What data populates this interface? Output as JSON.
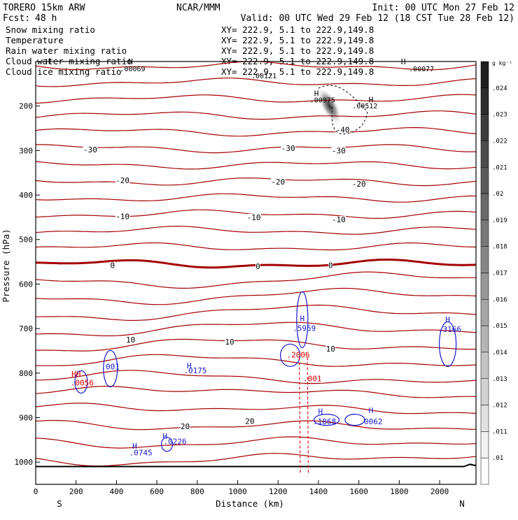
{
  "header": {
    "model": "TORERO  15km ARW",
    "org": "NCAR/MMM",
    "init": "Init: 00 UTC Mon 27 Feb 12",
    "fcst_label": "Fcst:",
    "fcst_value": "48 h",
    "valid": "Valid: 00 UTC Wed 29 Feb 12 (18 CST Tue 28 Feb 12)"
  },
  "legend": [
    {
      "name": "Snow mixing ratio",
      "xy": "XY= 222.9,  5.1 to 222.9,149.8",
      "color": "#000000"
    },
    {
      "name": "Temperature",
      "xy": "XY= 222.9,  5.1 to 222.9,149.8",
      "color": "#a50000"
    },
    {
      "name": "Rain water mixing ratio",
      "xy": "XY= 222.9,  5.1 to 222.9,149.8",
      "color": "#e00000"
    },
    {
      "name": "Cloud water mixing ratio",
      "xy": "XY= 222.9,  5.1 to 222.9,149.8",
      "color": "#1a1acc"
    },
    {
      "name": "Cloud ice mixing ratio",
      "xy": "XY= 222.9,  5.1 to 222.9,149.8",
      "color": "#000000"
    }
  ],
  "chart_data": {
    "type": "cross-section",
    "xlabel": "Distance (km)",
    "ylabel": "Pressure (hPa)",
    "xlim": [
      0,
      2180
    ],
    "ylim": [
      1050,
      100
    ],
    "xticks": [
      0,
      200,
      400,
      600,
      800,
      1000,
      1200,
      1400,
      1600,
      1800,
      2000
    ],
    "yticks": [
      200,
      300,
      400,
      500,
      600,
      700,
      800,
      900,
      1000
    ],
    "endpoints": {
      "left": "S",
      "right": "N"
    },
    "colorbar": {
      "unit": "g kg⁻¹",
      "ticks": [
        ".01",
        ".011",
        ".012",
        ".013",
        ".014",
        ".015",
        ".016",
        ".017",
        ".018",
        ".019",
        ".02",
        ".021",
        ".022",
        ".023",
        ".024"
      ]
    },
    "isotherm_labels": [
      {
        "text": "-30",
        "x": 270,
        "p": 298
      },
      {
        "text": "-30",
        "x": 1250,
        "p": 295
      },
      {
        "text": "-30",
        "x": 1500,
        "p": 300
      },
      {
        "text": "-20",
        "x": 430,
        "p": 367
      },
      {
        "text": "-20",
        "x": 1200,
        "p": 370
      },
      {
        "text": "-20",
        "x": 1600,
        "p": 375
      },
      {
        "text": "-10",
        "x": 430,
        "p": 448
      },
      {
        "text": "-10",
        "x": 1080,
        "p": 450
      },
      {
        "text": "-10",
        "x": 1500,
        "p": 455
      },
      {
        "text": "-40",
        "x": 1520,
        "p": 253
      },
      {
        "text": "0",
        "x": 380,
        "p": 558
      },
      {
        "text": "0",
        "x": 1100,
        "p": 560
      },
      {
        "text": "0",
        "x": 1460,
        "p": 558
      },
      {
        "text": "10",
        "x": 470,
        "p": 725
      },
      {
        "text": "10",
        "x": 960,
        "p": 730
      },
      {
        "text": "10",
        "x": 1460,
        "p": 745
      },
      {
        "text": "20",
        "x": 740,
        "p": 920
      },
      {
        "text": "20",
        "x": 1060,
        "p": 908
      }
    ],
    "cloud_water_labels": [
      {
        "text": ".001",
        "x": 370,
        "p": 792
      },
      {
        "text": ".0175",
        "x": 790,
        "p": 800
      },
      {
        "text": ".0745",
        "x": 520,
        "p": 985
      },
      {
        "text": ".0226",
        "x": 690,
        "p": 960
      },
      {
        "text": ".5959",
        "x": 1330,
        "p": 705
      },
      {
        "text": ".1868",
        "x": 1430,
        "p": 915
      },
      {
        "text": ".0062",
        "x": 1660,
        "p": 915
      },
      {
        "text": ".3166",
        "x": 2050,
        "p": 708
      }
    ],
    "cloud_water_H": [
      {
        "x": 760,
        "p": 789
      },
      {
        "x": 490,
        "p": 970
      },
      {
        "x": 640,
        "p": 948
      },
      {
        "x": 1320,
        "p": 683
      },
      {
        "x": 1410,
        "p": 892
      },
      {
        "x": 1660,
        "p": 890
      },
      {
        "x": 2040,
        "p": 686
      }
    ],
    "rain_labels": [
      {
        "text": ".0056",
        "x": 230,
        "p": 828
      },
      {
        "text": ".2006",
        "x": 1300,
        "p": 765
      },
      {
        "text": ".001",
        "x": 1370,
        "p": 818
      }
    ],
    "rain_H": [
      {
        "x": 200,
        "p": 808
      }
    ],
    "ice_labels": [
      {
        "text": ".00069",
        "x": 480,
        "p": 122
      },
      {
        "text": ".00121",
        "x": 1130,
        "p": 138
      },
      {
        "text": ".00975",
        "x": 1420,
        "p": 192
      },
      {
        "text": ".00512",
        "x": 1630,
        "p": 205
      },
      {
        "text": ".00077",
        "x": 1910,
        "p": 122
      }
    ],
    "ice_H": [
      {
        "x": 60,
        "p": 106
      },
      {
        "x": 470,
        "p": 106
      },
      {
        "x": 1390,
        "p": 178
      },
      {
        "x": 1660,
        "p": 192
      },
      {
        "x": 1820,
        "p": 106
      }
    ],
    "snow_max": 0.024
  }
}
